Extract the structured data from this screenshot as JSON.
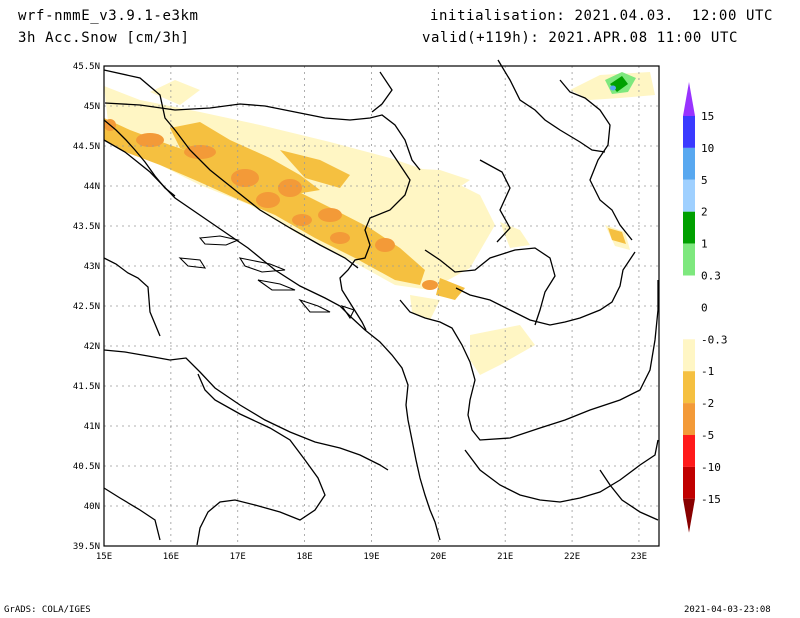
{
  "header": {
    "model": "wrf-nmmE_v3.9.1-e3km",
    "field": "3h Acc.Snow [cm/3h]",
    "init": "initialisation: 2021.04.03.  12:00 UTC",
    "valid": "valid(+119h): 2021.APR.08 11:00 UTC"
  },
  "footer": {
    "left": "GrADS: COLA/IGES",
    "right": "2021-04-03-23:08"
  },
  "map": {
    "lon_range": [
      15,
      23.3
    ],
    "lat_range": [
      39.5,
      45.5
    ],
    "lon_ticks": [
      {
        "v": 15,
        "t": "15E"
      },
      {
        "v": 16,
        "t": "16E"
      },
      {
        "v": 17,
        "t": "17E"
      },
      {
        "v": 18,
        "t": "18E"
      },
      {
        "v": 19,
        "t": "19E"
      },
      {
        "v": 20,
        "t": "20E"
      },
      {
        "v": 21,
        "t": "21E"
      },
      {
        "v": 22,
        "t": "22E"
      },
      {
        "v": 23,
        "t": "23E"
      }
    ],
    "lat_ticks": [
      {
        "v": 39.5,
        "t": "39.5N"
      },
      {
        "v": 40,
        "t": "40N"
      },
      {
        "v": 40.5,
        "t": "40.5N"
      },
      {
        "v": 41,
        "t": "41N"
      },
      {
        "v": 41.5,
        "t": "41.5N"
      },
      {
        "v": 42,
        "t": "42N"
      },
      {
        "v": 42.5,
        "t": "42.5N"
      },
      {
        "v": 43,
        "t": "43N"
      },
      {
        "v": 43.5,
        "t": "43.5N"
      },
      {
        "v": 44,
        "t": "44N"
      },
      {
        "v": 44.5,
        "t": "44.5N"
      },
      {
        "v": 45,
        "t": "45N"
      },
      {
        "v": 45.5,
        "t": "45.5N"
      }
    ],
    "grid": true,
    "colors": {
      "light": "#fff6c4",
      "mid": "#f5c040",
      "orange": "#f39a38"
    }
  },
  "colorbar": {
    "top_color": "#9933ff",
    "bottom_color": "#880000",
    "bins": [
      {
        "label": "15",
        "color": "#9933ff"
      },
      {
        "label": "10",
        "color": "#3a3aff"
      },
      {
        "label": "5",
        "color": "#58a8f0"
      },
      {
        "label": "2",
        "color": "#9fd0ff"
      },
      {
        "label": "1",
        "color": "#00a000"
      },
      {
        "label": "0.3",
        "color": "#7ee87e"
      },
      {
        "label": "0",
        "color": "#ffffff"
      },
      {
        "label": "-0.3",
        "color": "#ffffff"
      },
      {
        "label": "-1",
        "color": "#fff6c4"
      },
      {
        "label": "-2",
        "color": "#f5c040"
      },
      {
        "label": "-5",
        "color": "#f39a38"
      },
      {
        "label": "-10",
        "color": "#ff1a1a"
      },
      {
        "label": "-15",
        "color": "#c00000"
      }
    ]
  }
}
